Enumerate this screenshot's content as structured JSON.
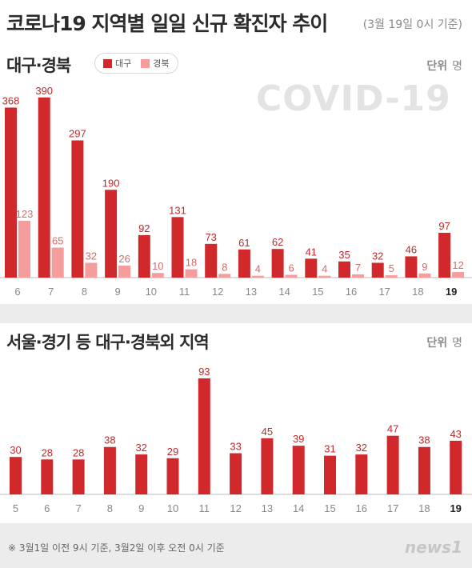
{
  "header": {
    "title_main": "코로나19 지역별 일일 신규 확진자 추이",
    "subtitle": "(3월 19일 0시 기준)"
  },
  "colors": {
    "daegu": "#d0282b",
    "gyeongbuk": "#f59c9c",
    "other": "#d0282b"
  },
  "watermark": "COVID-19",
  "footer": {
    "note": "※ 3월1일 이전 9시 기준, 3월2일 이후 오전 0시 기준",
    "brand": "news1"
  },
  "chart_data": [
    {
      "type": "bar",
      "title": "대구·경북",
      "unit_label": "단위",
      "unit": "명",
      "categories": [
        "6",
        "7",
        "8",
        "9",
        "10",
        "11",
        "12",
        "13",
        "14",
        "15",
        "16",
        "17",
        "18",
        "19"
      ],
      "series": [
        {
          "name": "대구",
          "color": "#d0282b",
          "values": [
            368,
            390,
            297,
            190,
            92,
            131,
            73,
            61,
            62,
            41,
            35,
            32,
            46,
            97
          ]
        },
        {
          "name": "경북",
          "color": "#f59c9c",
          "values": [
            123,
            65,
            32,
            26,
            10,
            18,
            8,
            4,
            6,
            4,
            7,
            5,
            9,
            12
          ]
        }
      ],
      "ylim": [
        0,
        400
      ]
    },
    {
      "type": "bar",
      "title": "서울·경기 등 대구·경북외 지역",
      "unit_label": "단위",
      "unit": "명",
      "categories": [
        "5",
        "6",
        "7",
        "8",
        "9",
        "10",
        "11",
        "12",
        "13",
        "14",
        "15",
        "16",
        "17",
        "18",
        "19"
      ],
      "series": [
        {
          "values": [
            30,
            28,
            28,
            38,
            32,
            29,
            93,
            33,
            45,
            39,
            31,
            32,
            47,
            38,
            43
          ]
        }
      ],
      "ylim": [
        0,
        100
      ]
    }
  ]
}
